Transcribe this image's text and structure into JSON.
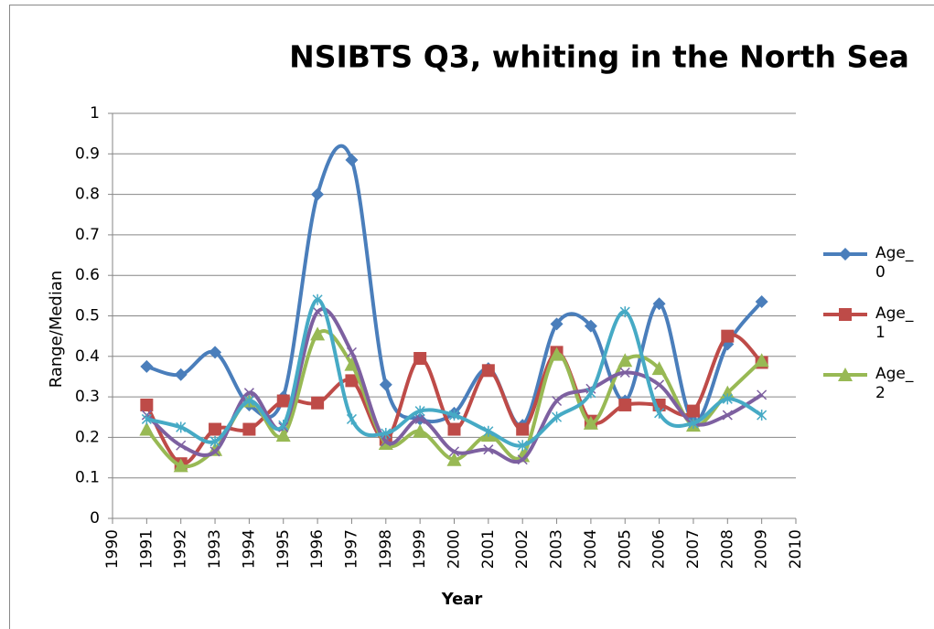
{
  "chart_data": {
    "type": "line",
    "title": "NSIBTS Q3, whiting in the North Sea",
    "xlabel": "Year",
    "ylabel": "Range/Median",
    "x": [
      1991,
      1992,
      1993,
      1994,
      1995,
      1996,
      1997,
      1998,
      1999,
      2000,
      2001,
      2002,
      2003,
      2004,
      2005,
      2006,
      2007,
      2008,
      2009
    ],
    "xlim": [
      1990,
      2010
    ],
    "xticks": [
      1990,
      1991,
      1992,
      1993,
      1994,
      1995,
      1996,
      1997,
      1998,
      1999,
      2000,
      2001,
      2002,
      2003,
      2004,
      2005,
      2006,
      2007,
      2008,
      2009,
      2010
    ],
    "ylim": [
      0,
      1
    ],
    "yticks": [
      0,
      0.1,
      0.2,
      0.3,
      0.4,
      0.5,
      0.6,
      0.7,
      0.8,
      0.9,
      1
    ],
    "grid": true,
    "smooth": true,
    "legend": "right",
    "series": [
      {
        "name": "Age_0",
        "color": "#4a7ebb",
        "marker": "diamond",
        "values": [
          0.375,
          0.355,
          0.41,
          0.28,
          0.3,
          0.8,
          0.885,
          0.33,
          0.245,
          0.26,
          0.37,
          0.23,
          0.48,
          0.475,
          0.29,
          0.53,
          0.24,
          0.43,
          0.535
        ]
      },
      {
        "name": "Age_1",
        "color": "#be4b48",
        "marker": "square",
        "values": [
          0.28,
          0.135,
          0.22,
          0.22,
          0.29,
          0.285,
          0.34,
          0.195,
          0.395,
          0.22,
          0.365,
          0.22,
          0.41,
          0.24,
          0.28,
          0.28,
          0.265,
          0.45,
          0.385
        ]
      },
      {
        "name": "Age_2",
        "color": "#98b954",
        "marker": "triangle",
        "values": [
          0.22,
          0.13,
          0.17,
          0.29,
          0.205,
          0.455,
          0.38,
          0.185,
          0.215,
          0.145,
          0.205,
          0.155,
          0.405,
          0.235,
          0.39,
          0.37,
          0.23,
          0.31,
          0.39
        ]
      },
      {
        "color": "#7d60a0",
        "marker": "x",
        "values": [
          0.255,
          0.18,
          0.165,
          0.31,
          0.225,
          0.51,
          0.41,
          0.19,
          0.245,
          0.165,
          0.17,
          0.145,
          0.29,
          0.32,
          0.36,
          0.33,
          0.235,
          0.255,
          0.305
        ]
      },
      {
        "color": "#46aac5",
        "marker": "star",
        "values": [
          0.245,
          0.225,
          0.19,
          0.29,
          0.23,
          0.54,
          0.245,
          0.21,
          0.265,
          0.255,
          0.215,
          0.18,
          0.25,
          0.31,
          0.51,
          0.26,
          0.235,
          0.295,
          0.255
        ]
      }
    ]
  }
}
